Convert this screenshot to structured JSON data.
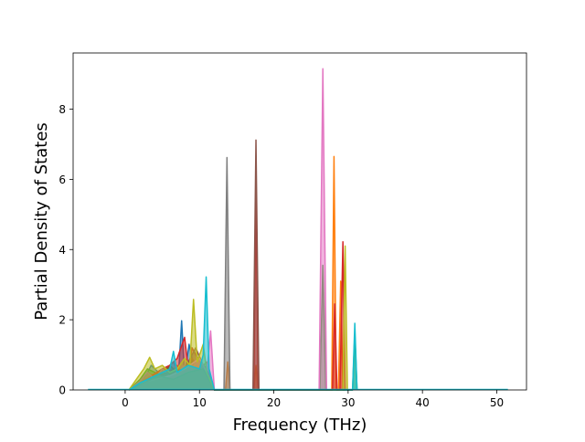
{
  "chart_data": {
    "type": "line",
    "title": "",
    "xlabel": "Frequency (THz)",
    "ylabel": "Partial Density of States",
    "xlim": [
      -7.0,
      54.0
    ],
    "ylim": [
      0,
      9.6
    ],
    "xticks": [
      0,
      10,
      20,
      30,
      40,
      50
    ],
    "yticks": [
      0,
      2,
      4,
      6,
      8
    ],
    "xtick_labels": [
      "0",
      "10",
      "20",
      "30",
      "40",
      "50"
    ],
    "ytick_labels": [
      "0",
      "2",
      "4",
      "6",
      "8"
    ],
    "grid": false,
    "legend": "none",
    "baseline_range": [
      -5,
      51.5
    ],
    "colors": [
      "#1f77b4",
      "#ff7f0e",
      "#2ca02c",
      "#d62728",
      "#9467bd",
      "#8c564b",
      "#e377c2",
      "#7f7f7f",
      "#bcbd22",
      "#17becf"
    ],
    "series": [
      {
        "color": "#1f77b4",
        "x": [
          0.5,
          1.5,
          2.5,
          3.5,
          4.5,
          5.5,
          6.5,
          7.2,
          7.6,
          8.0,
          8.6,
          9.3,
          10.0,
          11.0,
          12.0
        ],
        "y": [
          0,
          0.15,
          0.3,
          0.7,
          0.5,
          0.6,
          0.8,
          0.5,
          1.97,
          0.4,
          1.3,
          0.6,
          0.9,
          0.3,
          0
        ]
      },
      {
        "color": "#ff7f0e",
        "x": [
          0.5,
          2.0,
          3.0,
          4.0,
          5.0,
          6.0,
          7.0,
          8.0,
          9.0,
          10.0,
          11.0,
          12.0,
          13.5,
          13.8,
          14.1,
          17.3,
          17.6,
          17.9,
          27.8,
          28.1,
          28.4,
          28.7,
          29.0,
          29.3,
          29.6
        ],
        "y": [
          0,
          0.2,
          0.5,
          0.4,
          0.6,
          0.5,
          0.7,
          0.4,
          0.9,
          0.6,
          0.8,
          0,
          0,
          0.8,
          0,
          0,
          0.7,
          0,
          0,
          6.65,
          0,
          0,
          3.1,
          0,
          0
        ]
      },
      {
        "color": "#2ca02c",
        "x": [
          0.5,
          2.0,
          3.0,
          4.0,
          5.0,
          6.0,
          7.0,
          8.0,
          9.0,
          10.0,
          11.0,
          12.0,
          26.2,
          26.6,
          27.0,
          30.6,
          30.9,
          31.2
        ],
        "y": [
          0,
          0.3,
          0.6,
          0.5,
          0.4,
          0.7,
          0.5,
          0.6,
          0.8,
          0.5,
          0.4,
          0,
          0,
          3.55,
          0,
          0,
          1.6,
          0
        ]
      },
      {
        "color": "#d62728",
        "x": [
          0.5,
          2.0,
          3.5,
          5.0,
          6.0,
          7.0,
          8.0,
          8.5,
          9.0,
          10.0,
          11.0,
          12.0,
          17.3,
          17.6,
          17.9,
          27.9,
          28.2,
          28.5,
          28.9,
          29.3,
          29.6
        ],
        "y": [
          0,
          0.2,
          0.4,
          0.6,
          0.7,
          0.9,
          1.5,
          0.6,
          1.2,
          0.8,
          0.6,
          0,
          0,
          5.5,
          0,
          0,
          2.45,
          0,
          0,
          4.22,
          0
        ]
      },
      {
        "color": "#9467bd",
        "x": [
          0.5,
          2.0,
          3.0,
          4.0,
          5.0,
          6.0,
          7.0,
          8.0,
          9.0,
          10.0,
          11.0,
          12.0
        ],
        "y": [
          0,
          0.25,
          0.5,
          0.3,
          0.6,
          0.4,
          0.5,
          0.7,
          0.6,
          0.9,
          0.5,
          0
        ]
      },
      {
        "color": "#8c564b",
        "x": [
          0.5,
          2.0,
          4.0,
          6.0,
          8.0,
          9.5,
          10.5,
          11.5,
          12.0,
          17.2,
          17.6,
          18.0
        ],
        "y": [
          0,
          0.2,
          0.4,
          0.5,
          0.6,
          1.2,
          0.7,
          0.4,
          0,
          0,
          7.12,
          0
        ]
      },
      {
        "color": "#e377c2",
        "x": [
          0.5,
          2.0,
          4.0,
          6.0,
          8.0,
          10.0,
          11.0,
          11.5,
          12.0,
          26.1,
          26.6,
          27.1
        ],
        "y": [
          0,
          0.2,
          0.3,
          0.4,
          0.6,
          0.9,
          0.5,
          1.68,
          0,
          0,
          9.15,
          0
        ]
      },
      {
        "color": "#7f7f7f",
        "x": [
          0.5,
          2.5,
          4.5,
          6.5,
          8.5,
          10.5,
          12.0,
          13.3,
          13.7,
          14.1
        ],
        "y": [
          0,
          0.2,
          0.4,
          0.3,
          0.5,
          0.6,
          0,
          0,
          6.62,
          0
        ]
      },
      {
        "color": "#bcbd22",
        "x": [
          0.5,
          1.5,
          2.5,
          3.3,
          4.0,
          5.0,
          6.0,
          7.0,
          8.0,
          8.7,
          9.2,
          9.7,
          10.5,
          11.0,
          12.0,
          29.3,
          29.6,
          29.9
        ],
        "y": [
          0,
          0.3,
          0.6,
          0.93,
          0.6,
          0.7,
          0.5,
          0.6,
          0.9,
          0.7,
          2.58,
          0.8,
          1.3,
          0.5,
          0,
          0,
          4.1,
          0
        ]
      },
      {
        "color": "#17becf",
        "x": [
          0.5,
          2.0,
          4.0,
          6.0,
          6.5,
          7.0,
          8.5,
          10.0,
          10.5,
          10.9,
          11.3,
          12.0,
          30.6,
          30.9,
          31.2
        ],
        "y": [
          0,
          0.2,
          0.4,
          0.6,
          1.1,
          0.5,
          0.7,
          0.6,
          1.0,
          3.22,
          0.6,
          0,
          0,
          1.9,
          0
        ]
      }
    ]
  }
}
